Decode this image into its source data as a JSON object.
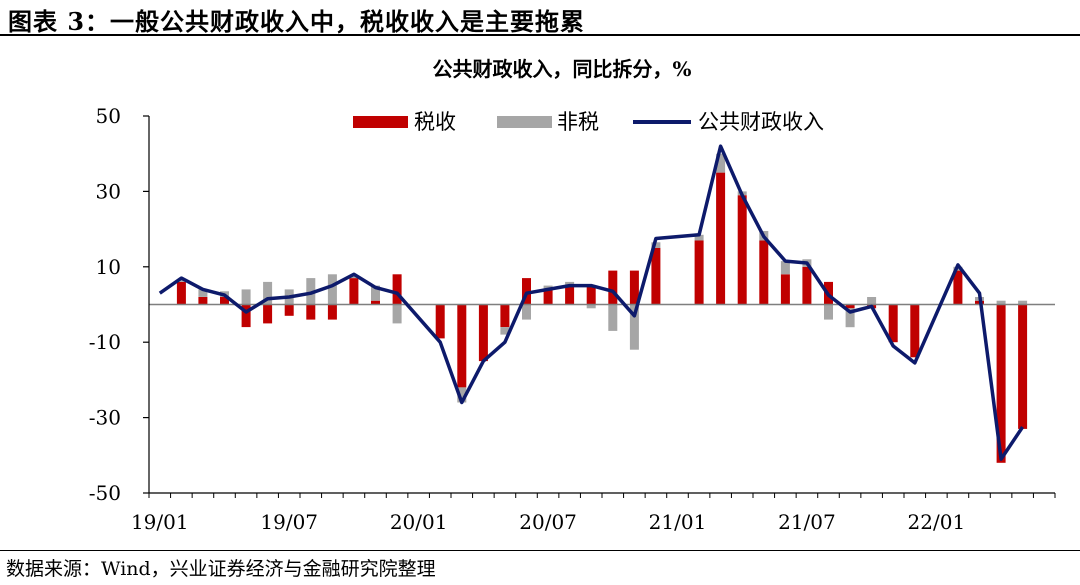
{
  "figure": {
    "title": "图表 3：一般公共财政收入中，税收收入是主要拖累",
    "source": "数据来源：Wind，兴业证券经济与金融研究院整理"
  },
  "colors": {
    "tax": "#c00000",
    "nontax": "#a6a6a6",
    "total": "#0d1a6b",
    "axis": "#000000"
  },
  "chart_data": {
    "type": "bar",
    "stacked": true,
    "title": "公共财政收入，同比拆分，%",
    "xlabel": "",
    "ylabel": "",
    "ylim": [
      -50,
      50
    ],
    "yticks": [
      50,
      30,
      10,
      -10,
      -30,
      -50
    ],
    "grid": false,
    "legend_position": "top-center",
    "categories": [
      "19/01",
      "19/02",
      "19/03",
      "19/04",
      "19/05",
      "19/06",
      "19/07",
      "19/08",
      "19/09",
      "19/10",
      "19/11",
      "19/12",
      "20/01",
      "20/02",
      "20/03",
      "20/04",
      "20/05",
      "20/06",
      "20/07",
      "20/08",
      "20/09",
      "20/10",
      "20/11",
      "20/12",
      "21/01",
      "21/02",
      "21/03",
      "21/04",
      "21/05",
      "21/06",
      "21/07",
      "21/08",
      "21/09",
      "21/10",
      "21/11",
      "21/12",
      "22/01",
      "22/02",
      "22/03",
      "22/04",
      "22/05",
      "22/06"
    ],
    "x_tick_labels": [
      {
        "index": 0,
        "label": "19/01"
      },
      {
        "index": 6,
        "label": "19/07"
      },
      {
        "index": 12,
        "label": "20/01"
      },
      {
        "index": 18,
        "label": "20/07"
      },
      {
        "index": 24,
        "label": "21/01"
      },
      {
        "index": 30,
        "label": "21/07"
      },
      {
        "index": 36,
        "label": "22/01"
      }
    ],
    "series": [
      {
        "name": "税收",
        "kind": "bar",
        "values": [
          null,
          6,
          2,
          2,
          -6,
          -5,
          -3,
          -4,
          -4,
          7,
          1,
          8,
          null,
          -9,
          -22,
          -15,
          -6,
          7,
          4,
          5,
          5,
          9,
          9,
          15,
          null,
          17,
          35,
          29,
          17,
          8,
          10,
          6,
          -1,
          -1,
          -10,
          -14,
          null,
          9,
          1,
          -42,
          -33,
          null
        ]
      },
      {
        "name": "非税",
        "kind": "bar",
        "values": [
          null,
          0.5,
          2,
          1.5,
          4,
          6,
          4,
          7,
          8,
          0.5,
          4,
          -5,
          null,
          0,
          -4,
          0,
          -2,
          -4,
          1,
          1,
          -1,
          -7,
          -12,
          1.5,
          null,
          1.5,
          5,
          1,
          2.5,
          3.5,
          2,
          -4,
          -5,
          2,
          0,
          0,
          null,
          1,
          1,
          1,
          1,
          null
        ]
      },
      {
        "name": "公共财政收入",
        "kind": "line",
        "values": [
          3,
          7,
          4,
          2.5,
          -2,
          1.5,
          2,
          3,
          5,
          8,
          4.5,
          3,
          null,
          -10,
          -26,
          -15,
          -10,
          3,
          4,
          5,
          5,
          3.5,
          -3,
          17.5,
          null,
          18.5,
          42,
          29,
          18,
          11.5,
          11,
          2.5,
          -2,
          -0.5,
          -11,
          -15.5,
          null,
          10.5,
          3,
          -41,
          -32.5,
          null
        ]
      }
    ]
  }
}
